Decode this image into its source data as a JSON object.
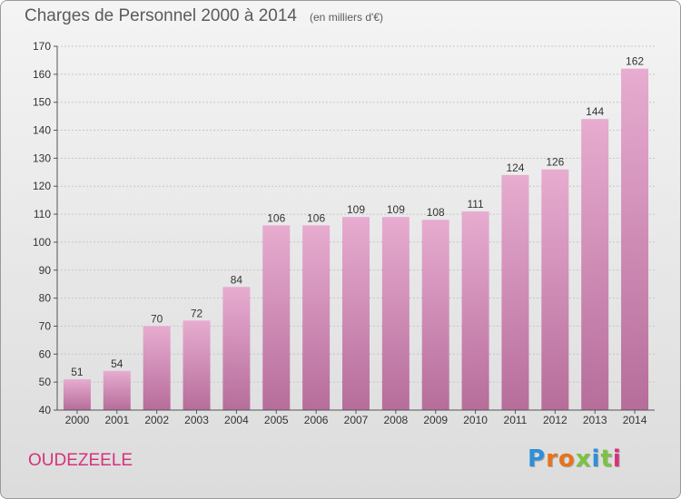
{
  "title": "Charges de Personnel 2000 à 2014",
  "subtitle": "(en milliers d'€)",
  "commune": "OUDEZEELE",
  "logo": {
    "text": "Proxiti",
    "colors": [
      "#2f8fd8",
      "#e8731c",
      "#e8731c",
      "#7cc243",
      "#2f8fd8",
      "#7cc243",
      "#d5327a"
    ]
  },
  "colors": {
    "commune": "#d5327a",
    "bar_top": "#e7acd0",
    "bar_bottom": "#b66d9a"
  },
  "chart_data": {
    "type": "bar",
    "categories": [
      "2000",
      "2001",
      "2002",
      "2003",
      "2004",
      "2005",
      "2006",
      "2007",
      "2008",
      "2009",
      "2010",
      "2011",
      "2012",
      "2013",
      "2014"
    ],
    "values": [
      51,
      54,
      70,
      72,
      84,
      106,
      106,
      109,
      109,
      108,
      111,
      124,
      126,
      144,
      162
    ],
    "ylim": [
      40,
      170
    ],
    "yticks": [
      40,
      50,
      60,
      70,
      80,
      90,
      100,
      110,
      120,
      130,
      140,
      150,
      160,
      170
    ],
    "grid": true
  }
}
